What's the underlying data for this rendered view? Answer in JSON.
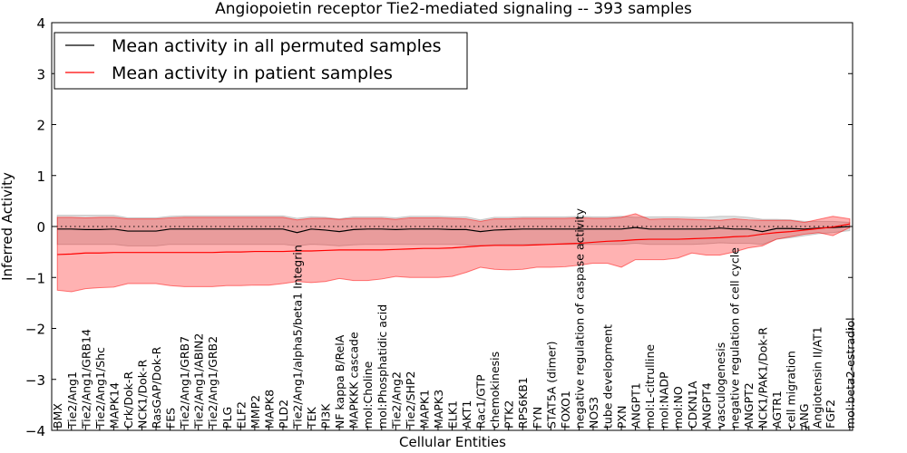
{
  "chart_data": {
    "type": "line",
    "title": "Angiopoietin receptor Tie2-mediated signaling -- 393 samples",
    "xlabel": "Cellular Entities",
    "ylabel": "Inferred Activity",
    "ylim": [
      -4,
      4
    ],
    "xlim": [
      -0.4,
      56.4
    ],
    "yticks": [
      -4,
      -3,
      -2,
      -1,
      0,
      1,
      2,
      3,
      4
    ],
    "grid": false,
    "legend_position": "top-left",
    "legend": [
      "Mean activity in all permuted samples",
      "Mean activity in patient samples"
    ],
    "x_labels": [
      {
        "label": "BMX",
        "x": 0
      },
      {
        "label": "Tie2/Ang1",
        "x": 1
      },
      {
        "label": "Tie2/Ang1/GRB14",
        "x": 2
      },
      {
        "label": "Tie2/Ang1/Shc",
        "x": 3
      },
      {
        "label": "MAPK14",
        "x": 4
      },
      {
        "label": "Crk/Dok-R",
        "x": 5
      },
      {
        "label": "NCK1/Dok-R",
        "x": 6
      },
      {
        "label": "RasGAP/Dok-R",
        "x": 7
      },
      {
        "label": "FES",
        "x": 8
      },
      {
        "label": "Tie2/Ang1/GRB7",
        "x": 9
      },
      {
        "label": "Tie2/Ang1/ABIN2",
        "x": 10
      },
      {
        "label": "Tie2/Ang1/GRB2",
        "x": 11
      },
      {
        "label": "PLG",
        "x": 12
      },
      {
        "label": "ELF2",
        "x": 13
      },
      {
        "label": "MMP2",
        "x": 14
      },
      {
        "label": "MAPK8",
        "x": 15
      },
      {
        "label": "PLD2",
        "x": 16
      },
      {
        "label": "Tie2/Ang1/alpha5/beta1 Integrin",
        "x": 17
      },
      {
        "label": "TEK",
        "x": 18
      },
      {
        "label": "PI3K",
        "x": 19
      },
      {
        "label": "NF kappa B/RelA",
        "x": 20
      },
      {
        "label": "MAPKKK cascade",
        "x": 21
      },
      {
        "label": "mol:Choline",
        "x": 22
      },
      {
        "label": "mol:Phosphatidic acid",
        "x": 23
      },
      {
        "label": "Tie2/Ang2",
        "x": 24
      },
      {
        "label": "Tie2/SHP2",
        "x": 25
      },
      {
        "label": "MAPK1",
        "x": 26
      },
      {
        "label": "MAPK3",
        "x": 27
      },
      {
        "label": "ELK1",
        "x": 28
      },
      {
        "label": "AKT1",
        "x": 29
      },
      {
        "label": "Rac1/GTP",
        "x": 30
      },
      {
        "label": "chemokinesis",
        "x": 31
      },
      {
        "label": "PTK2",
        "x": 32
      },
      {
        "label": "RPS6KB1",
        "x": 33
      },
      {
        "label": "FYN",
        "x": 34
      },
      {
        "label": "STAT5A (dimer)",
        "x": 35
      },
      {
        "label": "FOXO1",
        "x": 36
      },
      {
        "label": "negative regulation of caspase activity",
        "x": 37
      },
      {
        "label": "NOS3",
        "x": 38
      },
      {
        "label": "tube development",
        "x": 39
      },
      {
        "label": "PXN",
        "x": 40
      },
      {
        "label": "ANGPT1",
        "x": 41
      },
      {
        "label": "mol:L-citrulline",
        "x": 42
      },
      {
        "label": "mol:NADP",
        "x": 43
      },
      {
        "label": "mol:NO",
        "x": 44
      },
      {
        "label": "CDKN1A",
        "x": 45
      },
      {
        "label": "ANGPT4",
        "x": 46
      },
      {
        "label": "vasculogenesis",
        "x": 47
      },
      {
        "label": "negative regulation of cell cycle",
        "x": 48
      },
      {
        "label": "ANGPT2",
        "x": 49
      },
      {
        "label": "NCK1/PAK1/Dok-R",
        "x": 50
      },
      {
        "label": "AGTR1",
        "x": 51
      },
      {
        "label": "cell migration",
        "x": 52
      },
      {
        "label": "ANG",
        "x": 52.8
      },
      {
        "label": "Angiotensin II/AT1",
        "x": 53.1
      },
      {
        "label": "FGF2",
        "x": 53.3
      },
      {
        "label": "mol:beta2-estradiol",
        "x": 56.2
      }
    ],
    "x": [
      0,
      1,
      2,
      3,
      4,
      5,
      6,
      7,
      8,
      9,
      10,
      11,
      12,
      13,
      14,
      15,
      16,
      17,
      18,
      19,
      20,
      21,
      22,
      23,
      24,
      25,
      26,
      27,
      28,
      29,
      30,
      31,
      32,
      33,
      34,
      35,
      36,
      37,
      38,
      39,
      40,
      41,
      42,
      43,
      44,
      45,
      46,
      47,
      48,
      49,
      50,
      51,
      52,
      53,
      54,
      55,
      56.2
    ],
    "series": [
      {
        "name": "Mean activity in patient samples",
        "color": "#ff0000",
        "values": [
          -0.55,
          -0.54,
          -0.52,
          -0.52,
          -0.51,
          -0.51,
          -0.51,
          -0.51,
          -0.51,
          -0.51,
          -0.51,
          -0.51,
          -0.5,
          -0.5,
          -0.49,
          -0.49,
          -0.49,
          -0.48,
          -0.48,
          -0.47,
          -0.46,
          -0.46,
          -0.46,
          -0.46,
          -0.45,
          -0.44,
          -0.43,
          -0.43,
          -0.42,
          -0.4,
          -0.38,
          -0.37,
          -0.37,
          -0.37,
          -0.36,
          -0.35,
          -0.34,
          -0.33,
          -0.31,
          -0.29,
          -0.28,
          -0.26,
          -0.25,
          -0.25,
          -0.25,
          -0.24,
          -0.23,
          -0.22,
          -0.2,
          -0.19,
          -0.15,
          -0.12,
          -0.1,
          -0.07,
          -0.04,
          -0.01,
          0.05
        ],
        "lower": [
          -1.25,
          -1.28,
          -1.22,
          -1.2,
          -1.19,
          -1.12,
          -1.12,
          -1.12,
          -1.16,
          -1.18,
          -1.18,
          -1.18,
          -1.16,
          -1.16,
          -1.15,
          -1.15,
          -1.12,
          -1.08,
          -1.1,
          -1.08,
          -1.02,
          -1.06,
          -1.06,
          -1.03,
          -0.98,
          -1.0,
          -1.0,
          -1.0,
          -0.98,
          -0.9,
          -0.8,
          -0.84,
          -0.85,
          -0.84,
          -0.8,
          -0.8,
          -0.79,
          -0.76,
          -0.72,
          -0.72,
          -0.8,
          -0.65,
          -0.65,
          -0.65,
          -0.62,
          -0.52,
          -0.56,
          -0.56,
          -0.5,
          -0.42,
          -0.38,
          -0.25,
          -0.2,
          -0.15,
          -0.12,
          -0.18,
          -0.02
        ],
        "upper": [
          0.18,
          0.18,
          0.17,
          0.18,
          0.18,
          0.15,
          0.15,
          0.15,
          0.17,
          0.18,
          0.18,
          0.18,
          0.18,
          0.18,
          0.18,
          0.18,
          0.18,
          0.13,
          0.16,
          0.16,
          0.14,
          0.16,
          0.16,
          0.16,
          0.14,
          0.17,
          0.17,
          0.17,
          0.16,
          0.15,
          0.1,
          0.15,
          0.15,
          0.16,
          0.16,
          0.16,
          0.16,
          0.17,
          0.16,
          0.16,
          0.18,
          0.25,
          0.14,
          0.15,
          0.15,
          0.14,
          0.13,
          0.12,
          0.15,
          0.13,
          0.12,
          0.12,
          0.12,
          0.08,
          0.14,
          0.2,
          0.15
        ]
      },
      {
        "name": "Mean activity in all permuted samples",
        "color": "#000000",
        "values": [
          -0.05,
          -0.05,
          -0.06,
          -0.06,
          -0.05,
          -0.09,
          -0.09,
          -0.09,
          -0.05,
          -0.05,
          -0.05,
          -0.05,
          -0.05,
          -0.05,
          -0.05,
          -0.05,
          -0.05,
          -0.12,
          -0.05,
          -0.07,
          -0.1,
          -0.06,
          -0.05,
          -0.05,
          -0.06,
          -0.05,
          -0.05,
          -0.05,
          -0.06,
          -0.06,
          -0.1,
          -0.07,
          -0.06,
          -0.05,
          -0.05,
          -0.05,
          -0.05,
          -0.05,
          -0.05,
          -0.05,
          -0.05,
          -0.02,
          -0.05,
          -0.05,
          -0.05,
          -0.05,
          -0.05,
          -0.03,
          -0.05,
          -0.05,
          -0.1,
          -0.04,
          -0.04,
          -0.05,
          -0.03,
          -0.02,
          0.0
        ],
        "lower": [
          -0.35,
          -0.35,
          -0.35,
          -0.35,
          -0.35,
          -0.38,
          -0.38,
          -0.38,
          -0.35,
          -0.35,
          -0.35,
          -0.35,
          -0.35,
          -0.35,
          -0.35,
          -0.35,
          -0.35,
          -0.38,
          -0.35,
          -0.36,
          -0.38,
          -0.36,
          -0.35,
          -0.35,
          -0.35,
          -0.35,
          -0.35,
          -0.35,
          -0.35,
          -0.36,
          -0.38,
          -0.36,
          -0.35,
          -0.35,
          -0.35,
          -0.35,
          -0.35,
          -0.35,
          -0.35,
          -0.35,
          -0.35,
          -0.33,
          -0.35,
          -0.35,
          -0.35,
          -0.35,
          -0.34,
          -0.32,
          -0.33,
          -0.33,
          -0.35,
          -0.25,
          -0.22,
          -0.18,
          -0.14,
          -0.12,
          -0.08
        ],
        "upper": [
          0.22,
          0.22,
          0.22,
          0.22,
          0.22,
          0.17,
          0.17,
          0.17,
          0.2,
          0.21,
          0.21,
          0.21,
          0.21,
          0.21,
          0.21,
          0.21,
          0.21,
          0.16,
          0.19,
          0.18,
          0.15,
          0.19,
          0.19,
          0.19,
          0.17,
          0.2,
          0.2,
          0.2,
          0.19,
          0.19,
          0.13,
          0.18,
          0.18,
          0.19,
          0.19,
          0.19,
          0.19,
          0.2,
          0.19,
          0.19,
          0.2,
          0.18,
          0.19,
          0.19,
          0.19,
          0.18,
          0.18,
          0.2,
          0.2,
          0.18,
          0.14,
          0.14,
          0.13,
          0.1,
          0.1,
          0.1,
          0.08
        ]
      }
    ]
  }
}
